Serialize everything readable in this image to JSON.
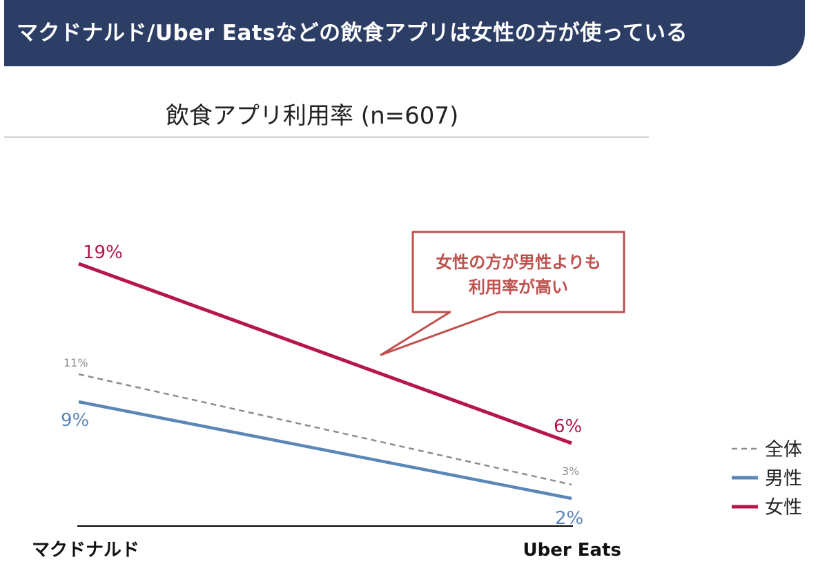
{
  "banner": {
    "title": "マクドナルド/Uber Eatsなどの飲食アプリは女性の方が使っている"
  },
  "chart_title": "飲食アプリ利用率 (n=607)",
  "callout": {
    "line1": "女性の方が男性よりも",
    "line2": "利用率が高い",
    "color": "#c0504d"
  },
  "chart_data": {
    "type": "line",
    "title": "飲食アプリ利用率 (n=607)",
    "categories": [
      "マクドナルド",
      "Uber Eats"
    ],
    "ylim": [
      0,
      20
    ],
    "grid": false,
    "legend_position": "bottom-right",
    "series": [
      {
        "name": "全体",
        "values": [
          11,
          3
        ],
        "labels": [
          "11%",
          "3%"
        ],
        "color": "#8c8c8c",
        "style": "dashed"
      },
      {
        "name": "男性",
        "values": [
          9,
          2
        ],
        "labels": [
          "9%",
          "2%"
        ],
        "color": "#5b86b8",
        "style": "solid"
      },
      {
        "name": "女性",
        "values": [
          19,
          6
        ],
        "labels": [
          "19%",
          "6%"
        ],
        "color": "#b5174b",
        "style": "solid"
      }
    ]
  }
}
